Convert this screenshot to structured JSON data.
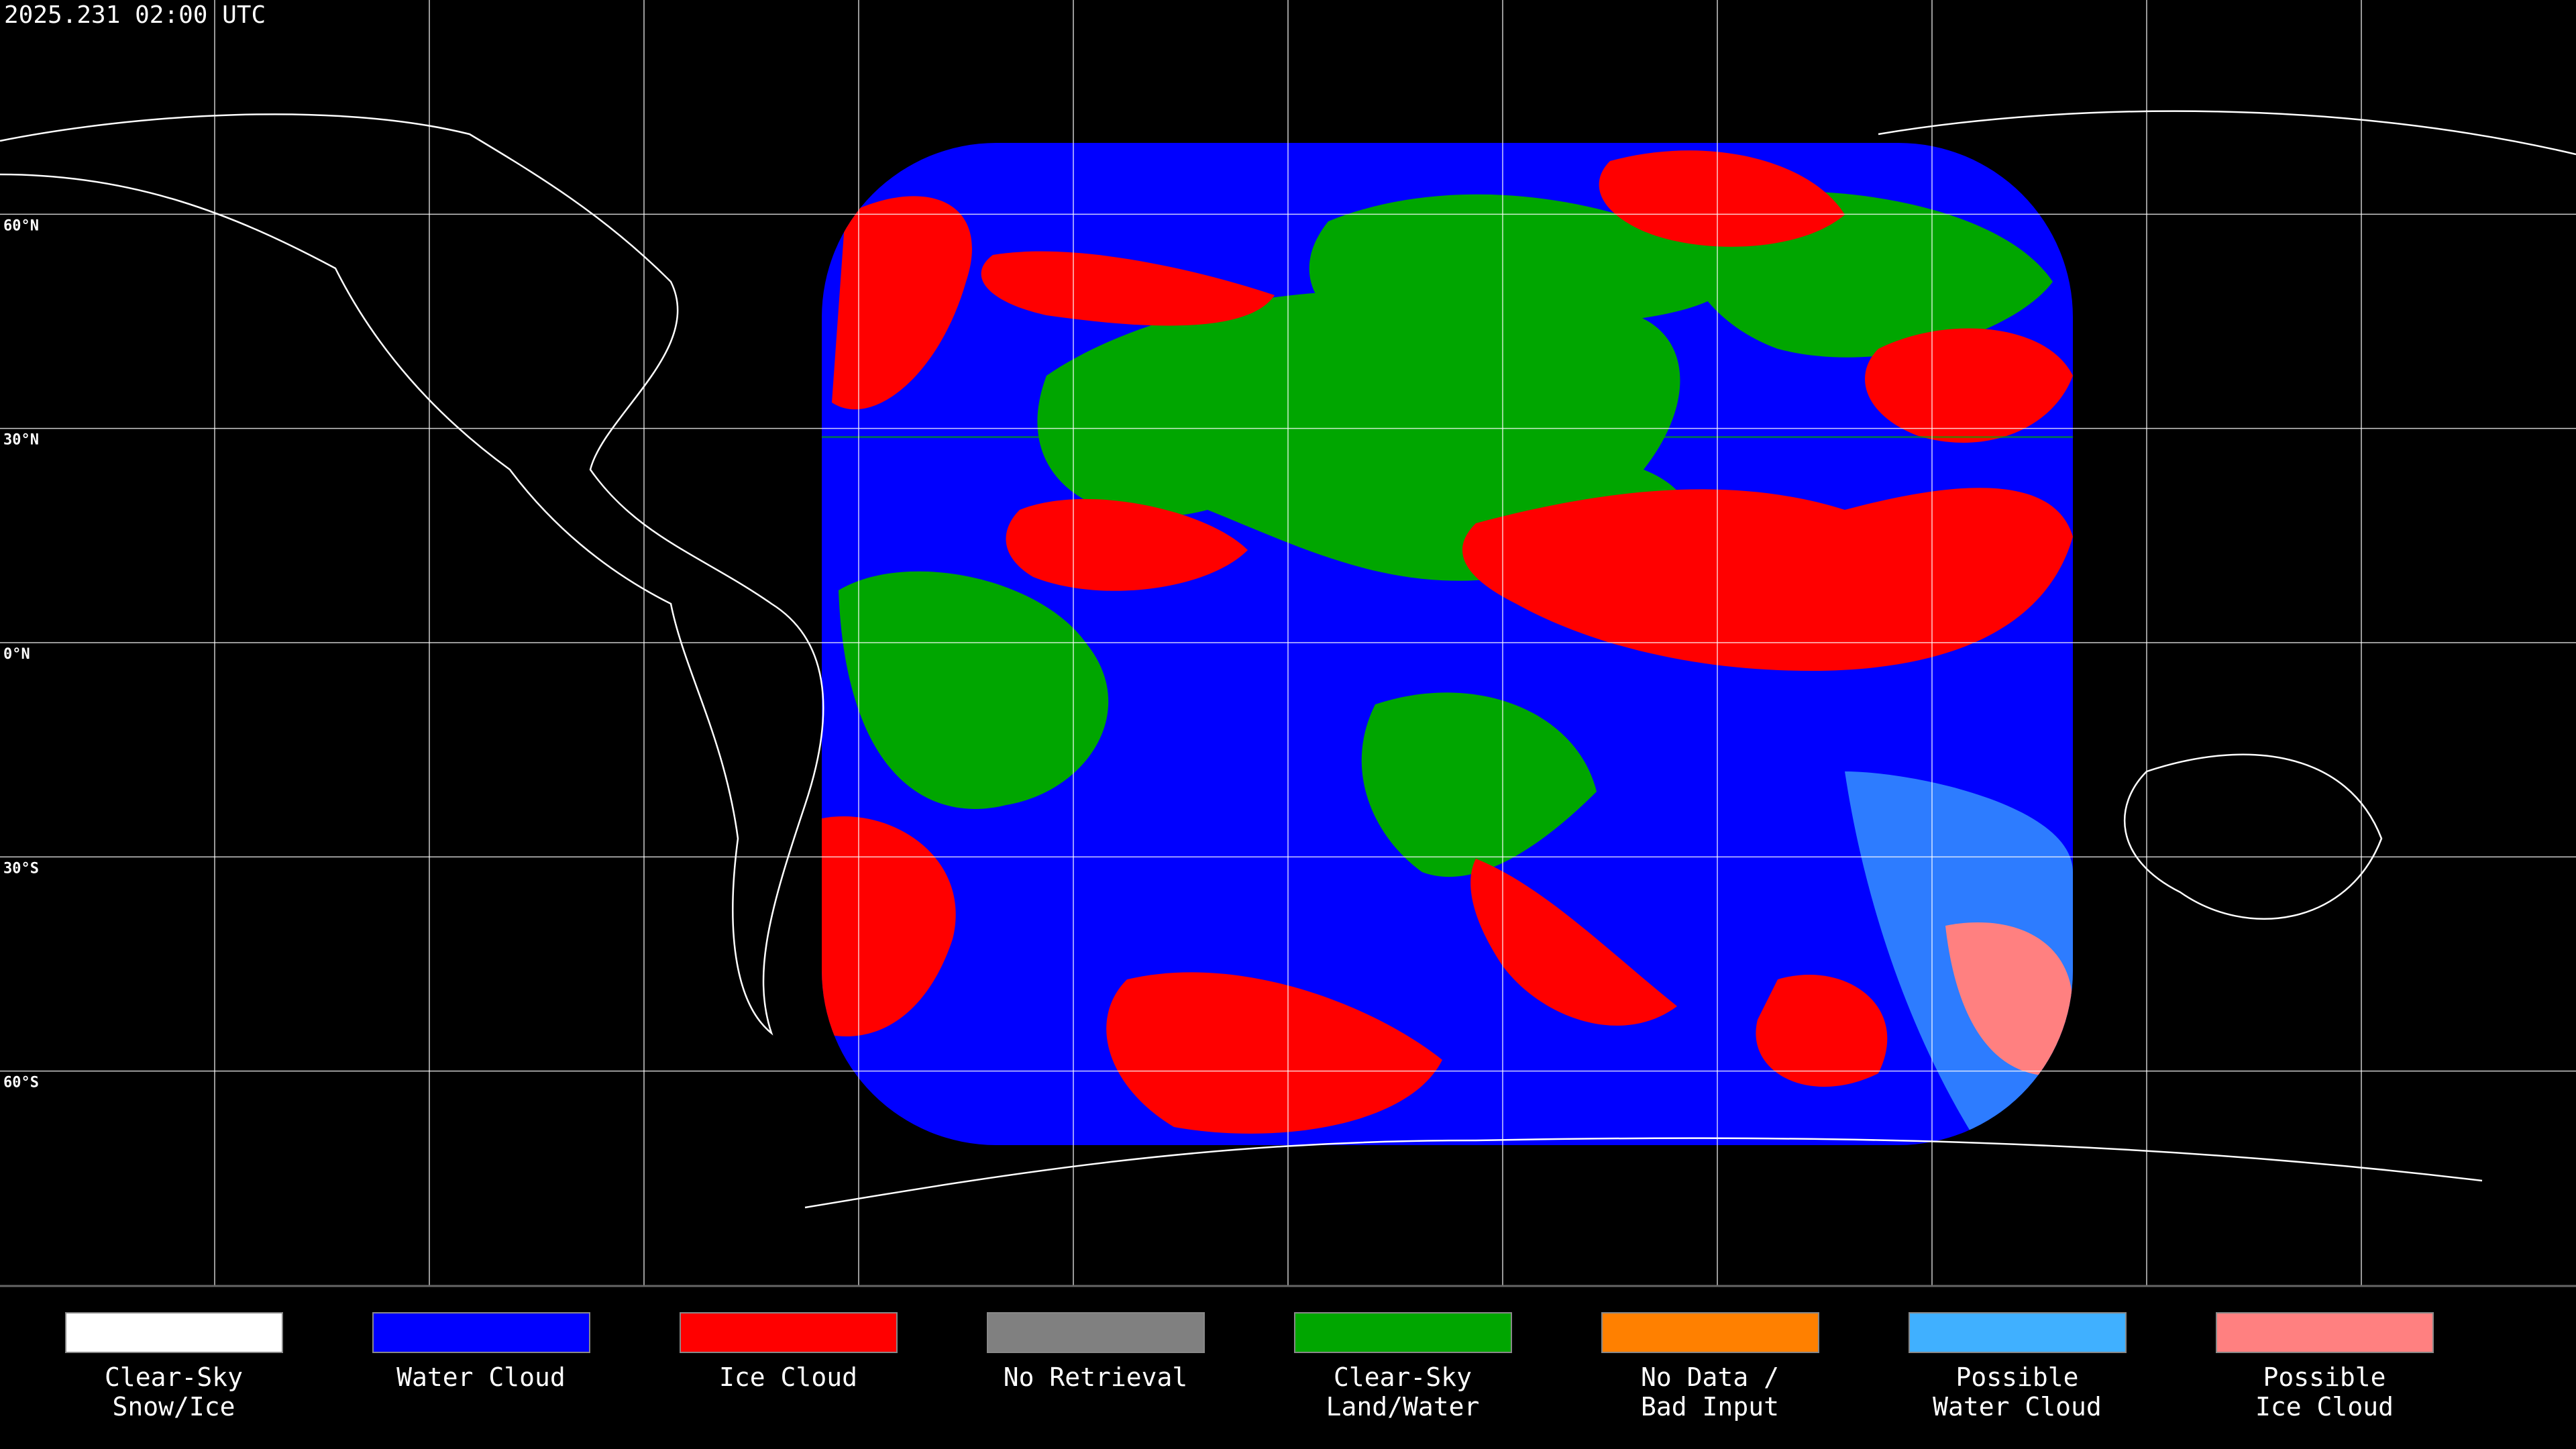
{
  "header": {
    "timestamp": "2025.231 02:00 UTC"
  },
  "map": {
    "lat_labels": [
      "60°N",
      "30°N",
      "0°N",
      "30°S",
      "60°S"
    ]
  },
  "legend": {
    "items": [
      {
        "lines": [
          "Clear-Sky",
          "Snow/Ice"
        ],
        "color": "#ffffff"
      },
      {
        "lines": [
          "Water Cloud"
        ],
        "color": "#0000ff"
      },
      {
        "lines": [
          "Ice Cloud"
        ],
        "color": "#ff0000"
      },
      {
        "lines": [
          "No Retrieval"
        ],
        "color": "#808080"
      },
      {
        "lines": [
          "Clear-Sky",
          "Land/Water"
        ],
        "color": "#00a600"
      },
      {
        "lines": [
          "No Data /",
          "Bad Input"
        ],
        "color": "#ff8000"
      },
      {
        "lines": [
          "Possible",
          "Water Cloud"
        ],
        "color": "#40b0ff"
      },
      {
        "lines": [
          "Possible",
          "Ice Cloud"
        ],
        "color": "#ff8080"
      }
    ]
  }
}
